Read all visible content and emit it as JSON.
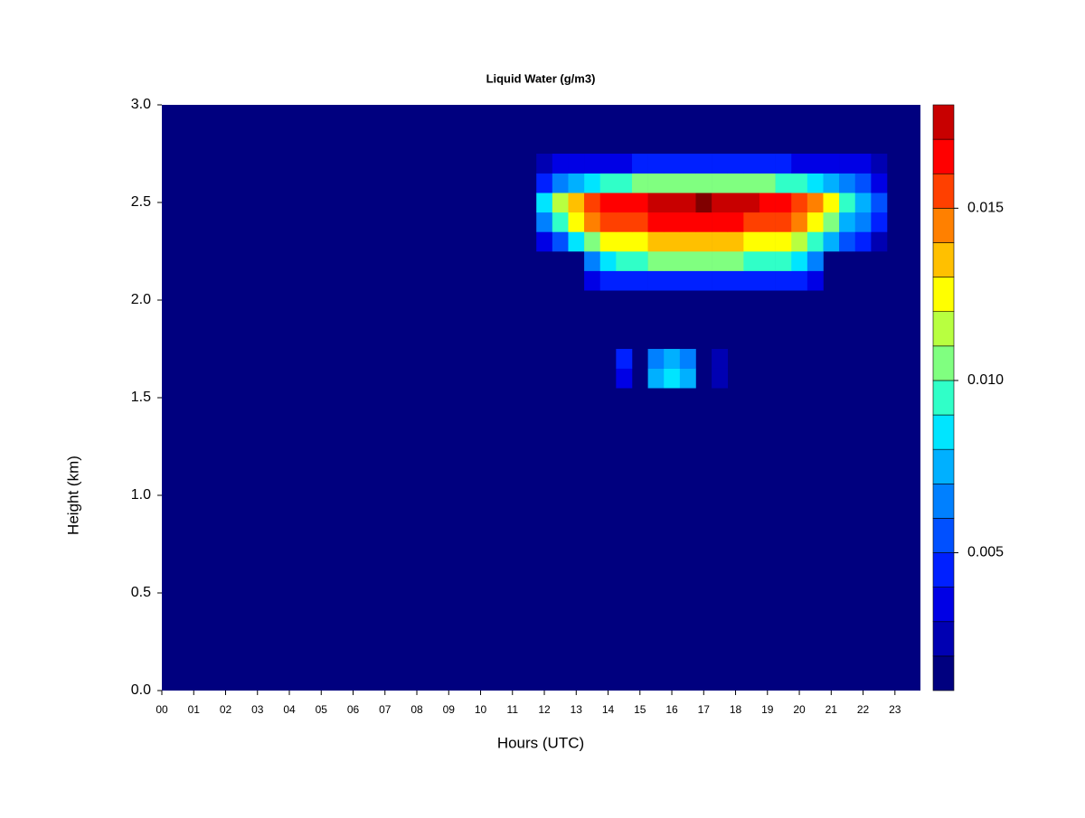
{
  "chart_data": {
    "type": "heatmap",
    "title": "Liquid Water (g/m3)",
    "x_label": "Hours (UTC)",
    "y_label": "Height (km)",
    "background": "#00007F",
    "xlim": [
      0,
      23.8
    ],
    "ylim": [
      0,
      3
    ],
    "xticks": [
      {
        "value": 0,
        "label": "00"
      },
      {
        "value": 1,
        "label": "01"
      },
      {
        "value": 2,
        "label": "02"
      },
      {
        "value": 3,
        "label": "03"
      },
      {
        "value": 4,
        "label": "04"
      },
      {
        "value": 5,
        "label": "05"
      },
      {
        "value": 6,
        "label": "06"
      },
      {
        "value": 7,
        "label": "07"
      },
      {
        "value": 8,
        "label": "08"
      },
      {
        "value": 9,
        "label": "09"
      },
      10,
      11,
      12,
      13,
      14,
      15,
      16,
      17,
      18,
      19,
      20,
      21,
      22,
      23
    ],
    "yticks": [
      {
        "value": 0,
        "label": "0.0"
      },
      0.5,
      {
        "value": 1,
        "label": "1.0"
      },
      1.5,
      {
        "value": 2,
        "label": "2.0"
      },
      2.5,
      {
        "value": 3,
        "label": "3.0"
      }
    ],
    "xbins": [
      11.75,
      12.25,
      12.75,
      13.25,
      13.75,
      14.25,
      14.75,
      15.25,
      15.75,
      16.25,
      16.75,
      17.25,
      17.75,
      18.25,
      18.75,
      19.25,
      19.75,
      20.25,
      20.75,
      21.25,
      21.75,
      22.25,
      22.75
    ],
    "ybins": [
      1.55,
      1.65,
      1.75,
      1.85,
      1.95,
      2.05,
      2.15,
      2.25,
      2.35,
      2.45,
      2.55,
      2.65,
      2.75
    ],
    "z": [
      [
        null,
        null,
        null,
        null,
        null,
        0.003,
        null,
        0.007,
        0.008,
        0.007,
        null,
        0.002,
        null,
        null,
        null,
        null,
        null,
        null,
        null,
        null,
        null,
        null
      ],
      [
        null,
        null,
        null,
        null,
        null,
        0.004,
        null,
        0.006,
        0.007,
        0.006,
        null,
        0.002,
        null,
        null,
        null,
        null,
        null,
        null,
        null,
        null,
        null,
        null
      ],
      [
        null,
        null,
        null,
        null,
        null,
        null,
        null,
        null,
        null,
        null,
        null,
        null,
        null,
        null,
        null,
        null,
        null,
        null,
        null,
        null,
        null,
        null
      ],
      [
        null,
        null,
        null,
        null,
        null,
        null,
        null,
        null,
        null,
        null,
        null,
        null,
        null,
        null,
        null,
        null,
        null,
        null,
        null,
        null,
        null,
        null
      ],
      [
        null,
        null,
        null,
        null,
        null,
        null,
        null,
        null,
        null,
        null,
        null,
        null,
        null,
        null,
        null,
        null,
        null,
        null,
        null,
        null,
        null,
        null
      ],
      [
        null,
        null,
        null,
        0.003,
        0.004,
        0.004,
        0.004,
        0.004,
        0.004,
        0.004,
        0.004,
        0.004,
        0.004,
        0.004,
        0.004,
        0.004,
        0.004,
        0.003,
        null,
        null,
        null,
        null
      ],
      [
        null,
        null,
        null,
        0.006,
        0.008,
        0.009,
        0.009,
        0.01,
        0.01,
        0.01,
        0.01,
        0.01,
        0.01,
        0.009,
        0.009,
        0.009,
        0.008,
        0.006,
        null,
        null,
        null,
        null
      ],
      [
        0.003,
        0.005,
        0.008,
        0.01,
        0.012,
        0.012,
        0.012,
        0.013,
        0.013,
        0.013,
        0.013,
        0.013,
        0.013,
        0.012,
        0.012,
        0.012,
        0.011,
        0.009,
        0.007,
        0.005,
        0.004,
        0.002
      ],
      [
        0.006,
        0.009,
        0.012,
        0.014,
        0.015,
        0.015,
        0.015,
        0.016,
        0.016,
        0.016,
        0.016,
        0.016,
        0.016,
        0.015,
        0.015,
        0.015,
        0.014,
        0.012,
        0.01,
        0.007,
        0.006,
        0.004
      ],
      [
        0.008,
        0.011,
        0.013,
        0.015,
        0.016,
        0.016,
        0.016,
        0.017,
        0.017,
        0.017,
        0.018,
        0.017,
        0.017,
        0.017,
        0.016,
        0.016,
        0.015,
        0.014,
        0.012,
        0.009,
        0.007,
        0.005
      ],
      [
        0.004,
        0.006,
        0.007,
        0.008,
        0.009,
        0.009,
        0.01,
        0.01,
        0.01,
        0.01,
        0.01,
        0.01,
        0.01,
        0.01,
        0.01,
        0.009,
        0.009,
        0.008,
        0.007,
        0.006,
        0.005,
        0.003
      ],
      [
        0.002,
        0.003,
        0.003,
        0.003,
        0.003,
        0.003,
        0.004,
        0.004,
        0.004,
        0.004,
        0.004,
        0.004,
        0.004,
        0.004,
        0.004,
        0.004,
        0.003,
        0.003,
        0.003,
        0.003,
        0.003,
        0.002
      ]
    ],
    "colorbar": {
      "levels": [
        0.001,
        0.002,
        0.003,
        0.004,
        0.005,
        0.006,
        0.007,
        0.008,
        0.009,
        0.01,
        0.011,
        0.012,
        0.013,
        0.014,
        0.015,
        0.016,
        0.017,
        0.018
      ],
      "colors": [
        "#00007F",
        "#0000B2",
        "#0000E5",
        "#0020FF",
        "#0050FF",
        "#0080FF",
        "#00B0FF",
        "#00E5FF",
        "#30FFC8",
        "#80FF80",
        "#B8FF40",
        "#FFFF00",
        "#FFC000",
        "#FF8000",
        "#FF4000",
        "#FF0000",
        "#C80000",
        "#800000"
      ],
      "ticks": [
        0.005,
        {
          "value": 0.01,
          "label": "0.010"
        },
        0.015
      ]
    }
  }
}
